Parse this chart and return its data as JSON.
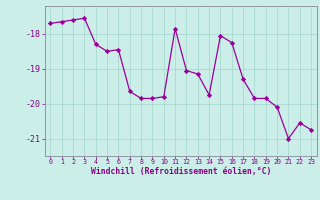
{
  "x": [
    0,
    1,
    2,
    3,
    4,
    5,
    6,
    7,
    8,
    9,
    10,
    11,
    12,
    13,
    14,
    15,
    16,
    17,
    18,
    19,
    20,
    21,
    22,
    23
  ],
  "y": [
    -17.7,
    -17.65,
    -17.6,
    -17.55,
    -18.3,
    -18.5,
    -18.45,
    -19.65,
    -19.85,
    -19.85,
    -19.8,
    -17.85,
    -19.05,
    -19.15,
    -19.75,
    -18.05,
    -18.25,
    -19.3,
    -19.85,
    -19.85,
    -20.1,
    -21.0,
    -20.55,
    -20.75
  ],
  "xlabel": "Windchill (Refroidissement éolien,°C)",
  "ylim": [
    -21.5,
    -17.2
  ],
  "xlim": [
    -0.5,
    23.5
  ],
  "yticks": [
    -21,
    -20,
    -19,
    -18
  ],
  "xticks": [
    0,
    1,
    2,
    3,
    4,
    5,
    6,
    7,
    8,
    9,
    10,
    11,
    12,
    13,
    14,
    15,
    16,
    17,
    18,
    19,
    20,
    21,
    22,
    23
  ],
  "line_color": "#990099",
  "marker": "D",
  "marker_size": 2.2,
  "bg_color": "#cceee8",
  "grid_color": "#aad8d2",
  "tick_color": "#880088",
  "label_color": "#880088"
}
